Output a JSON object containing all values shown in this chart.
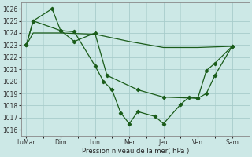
{
  "background_color": "#cce8e6",
  "grid_color": "#a8cccb",
  "line_color": "#1a5c1a",
  "marker_color": "#1a5c1a",
  "xlabel": "Pression niveau de la mer( hPa )",
  "ylim": [
    1015.5,
    1026.5
  ],
  "yticks": [
    1016,
    1017,
    1018,
    1019,
    1020,
    1021,
    1022,
    1023,
    1024,
    1025,
    1026
  ],
  "xtick_labels": [
    "LuMar",
    "Dim",
    "Lun",
    "Mer",
    "Jeu",
    "Ven",
    "Sam"
  ],
  "xtick_positions": [
    0,
    2,
    4,
    6,
    8,
    10,
    12
  ],
  "series_smooth_x": [
    0,
    0.4,
    2,
    4,
    6,
    8,
    10,
    12
  ],
  "series_smooth_y": [
    1023,
    1024.0,
    1024.0,
    1023.9,
    1023.3,
    1022.8,
    1022.8,
    1022.9
  ],
  "series_mid_x": [
    0,
    0.4,
    2.0,
    2.8,
    4.0,
    4.7,
    6.5,
    8.0,
    10.0,
    10.5,
    11.0,
    12.0
  ],
  "series_mid_y": [
    1023,
    1025,
    1024.2,
    1023.3,
    1024.0,
    1020.5,
    1019.3,
    1018.7,
    1018.6,
    1019.0,
    1020.5,
    1022.9
  ],
  "series_jagged_x": [
    0,
    0.4,
    1.5,
    2.0,
    2.8,
    4.0,
    4.5,
    5.0,
    5.5,
    6.0,
    6.5,
    7.5,
    8.0,
    9.0,
    9.5,
    10.0,
    10.5,
    11.0,
    12.0
  ],
  "series_jagged_y": [
    1023,
    1025,
    1026,
    1024.2,
    1024.1,
    1021.3,
    1020.0,
    1019.3,
    1017.4,
    1016.5,
    1017.5,
    1017.1,
    1016.5,
    1018.1,
    1018.7,
    1018.6,
    1020.9,
    1021.5,
    1022.9
  ]
}
